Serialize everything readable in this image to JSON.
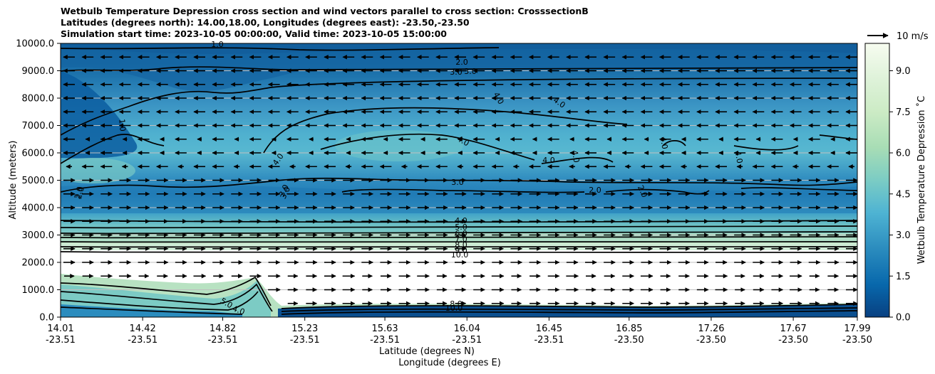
{
  "chart_data": {
    "type": "contour",
    "title_lines": [
      "Wetbulb Temperature Depression cross section and wind vectors parallel to cross section: CrosssectionB",
      "Latitudes (degrees north): 14.00,18.00, Longitudes (degrees east): -23.50,-23.50",
      "Simulation start time: 2023-10-05 00:00:00, Valid time: 2023-10-05 15:00:00"
    ],
    "ylabel": "Altitude (meters)",
    "xlabel_lat": "Latitude (degrees N)",
    "xlabel_lon": "Longitude (degrees E)",
    "ylim": [
      0,
      10000
    ],
    "yticks": [
      "0.0",
      "1000.0",
      "2000.0",
      "3000.0",
      "4000.0",
      "5000.0",
      "6000.0",
      "7000.0",
      "8000.0",
      "9000.0",
      "10000.0"
    ],
    "xticks_lat": [
      "14.01",
      "14.42",
      "14.82",
      "15.23",
      "15.63",
      "16.04",
      "16.45",
      "16.85",
      "17.26",
      "17.67",
      "17.99"
    ],
    "xticks_lon": [
      "-23.51",
      "-23.51",
      "-23.51",
      "-23.51",
      "-23.51",
      "-23.51",
      "-23.51",
      "-23.50",
      "-23.50",
      "-23.50",
      "-23.50"
    ],
    "colorbar_label": "Wetbulb Temperature Depression $^\\circ$C",
    "colorbar_label_text": "Wetbulb Temperature Depression ˚C",
    "colorbar_ticks": [
      "0.0",
      "1.5",
      "3.0",
      "4.5",
      "6.0",
      "7.5",
      "9.0"
    ],
    "colorbar_range": [
      0,
      10
    ],
    "quiver_key": "10 m/s",
    "contour_labels": [
      "1.0",
      "2.0",
      "3.0",
      "3.0",
      "4.0",
      "4.0",
      "4.0",
      "4.0",
      "4.0",
      "4.0",
      "4.0",
      "4.0",
      "3.0",
      "2.0",
      "2.0",
      "2.0",
      "3.0",
      "4.0",
      "5.0",
      "6.0",
      "7.0",
      "8.0",
      "9.0",
      "10.0",
      "1.0",
      "2.0",
      "3.0",
      "4.0",
      "5.0",
      "8.0",
      "10.0"
    ],
    "layers": [
      {
        "altitude": 9600,
        "value": 1.2
      },
      {
        "altitude": 8500,
        "value": 2.0
      },
      {
        "altitude": 7000,
        "value": 3.4
      },
      {
        "altitude": 6000,
        "value": 4.0
      },
      {
        "altitude": 4500,
        "value": 2.3
      },
      {
        "altitude": 3500,
        "value": 3.5
      },
      {
        "altitude": 2800,
        "value": 6.0
      },
      {
        "altitude": 2300,
        "value": 10.0
      },
      {
        "altitude": 1000,
        "value": 10.0
      },
      {
        "altitude": 200,
        "value": 1.0
      }
    ],
    "wind_rows": [
      {
        "altitude": 9500,
        "direction": "left"
      },
      {
        "altitude": 9000,
        "direction": "left"
      },
      {
        "altitude": 8500,
        "direction": "left"
      },
      {
        "altitude": 8000,
        "direction": "left"
      },
      {
        "altitude": 7500,
        "direction": "left"
      },
      {
        "altitude": 7000,
        "direction": "left"
      },
      {
        "altitude": 6500,
        "direction": "left"
      },
      {
        "altitude": 6000,
        "direction": "left"
      },
      {
        "altitude": 5500,
        "direction": "left"
      },
      {
        "altitude": 5000,
        "direction": "right"
      },
      {
        "altitude": 4500,
        "direction": "right"
      },
      {
        "altitude": 4000,
        "direction": "right"
      },
      {
        "altitude": 3500,
        "direction": "right"
      },
      {
        "altitude": 3000,
        "direction": "right"
      },
      {
        "altitude": 2500,
        "direction": "right"
      },
      {
        "altitude": 2000,
        "direction": "right"
      },
      {
        "altitude": 1500,
        "direction": "right"
      },
      {
        "altitude": 1000,
        "direction": "right"
      },
      {
        "altitude": 500,
        "direction": "right"
      }
    ]
  }
}
